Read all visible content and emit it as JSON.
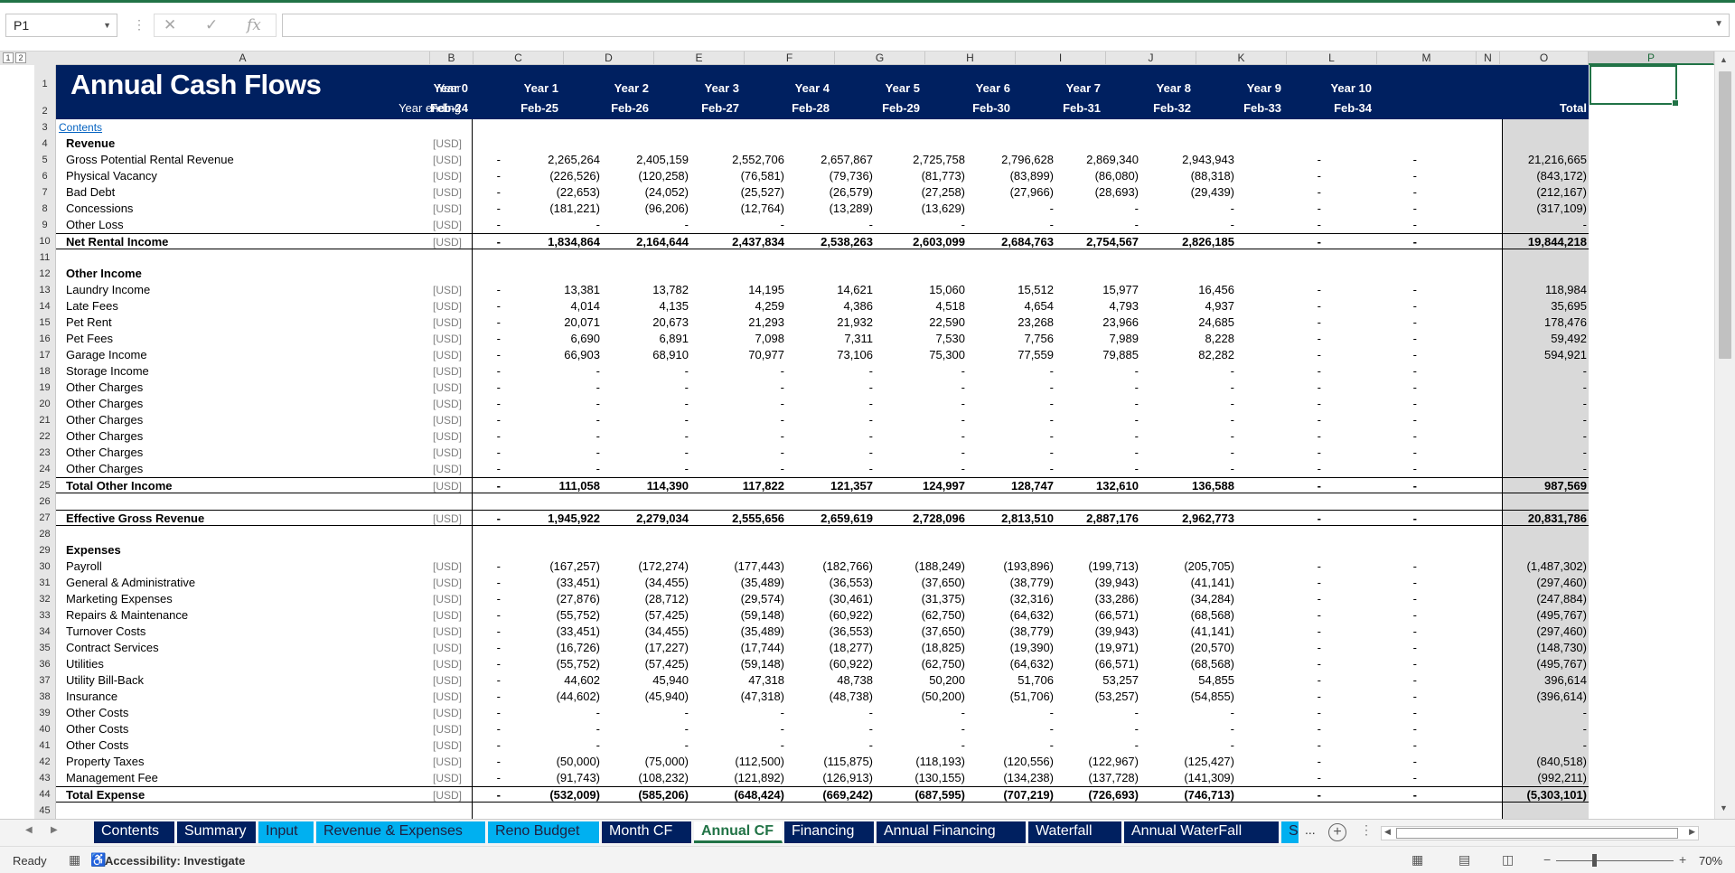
{
  "namebox": "P1",
  "columns": [
    "A",
    "B",
    "C",
    "D",
    "E",
    "F",
    "G",
    "H",
    "I",
    "J",
    "K",
    "L",
    "M",
    "N",
    "O",
    "P"
  ],
  "rows_numbers": [
    "1",
    "2",
    "3",
    "4",
    "5",
    "6",
    "7",
    "8",
    "9",
    "10",
    "11",
    "12",
    "13",
    "14",
    "15",
    "16",
    "17",
    "18",
    "19",
    "20",
    "21",
    "22",
    "23",
    "24",
    "25",
    "26",
    "27",
    "28",
    "29",
    "30",
    "31",
    "32",
    "33",
    "34",
    "35",
    "36",
    "37",
    "38",
    "39",
    "40",
    "41",
    "42",
    "43",
    "44",
    "45"
  ],
  "banner": {
    "title": "Annual Cash Flows",
    "year_label": "Year",
    "year_ending_label": "Year ending",
    "years": [
      "Year 0",
      "Year 1",
      "Year 2",
      "Year 3",
      "Year 4",
      "Year 5",
      "Year 6",
      "Year 7",
      "Year 8",
      "Year 9",
      "Year 10"
    ],
    "endings": [
      "Feb-24",
      "Feb-25",
      "Feb-26",
      "Feb-27",
      "Feb-28",
      "Feb-29",
      "Feb-30",
      "Feb-31",
      "Feb-32",
      "Feb-33",
      "Feb-34"
    ],
    "total_label": "Total"
  },
  "contents_link": "Contents",
  "rows": [
    {
      "label": "Revenue",
      "unit": "[USD]",
      "bold": true,
      "vals": []
    },
    {
      "label": "Gross Potential Rental Revenue",
      "unit": "[USD]",
      "vals": [
        "-",
        "2,265,264",
        "2,405,159",
        "2,552,706",
        "2,657,867",
        "2,725,758",
        "2,796,628",
        "2,869,340",
        "2,943,943",
        "-",
        "-",
        "21,216,665"
      ]
    },
    {
      "label": "Physical Vacancy",
      "unit": "[USD]",
      "vals": [
        "-",
        "(226,526)",
        "(120,258)",
        "(76,581)",
        "(79,736)",
        "(81,773)",
        "(83,899)",
        "(86,080)",
        "(88,318)",
        "-",
        "-",
        "(843,172)"
      ]
    },
    {
      "label": "Bad Debt",
      "unit": "[USD]",
      "vals": [
        "-",
        "(22,653)",
        "(24,052)",
        "(25,527)",
        "(26,579)",
        "(27,258)",
        "(27,966)",
        "(28,693)",
        "(29,439)",
        "-",
        "-",
        "(212,167)"
      ]
    },
    {
      "label": "Concessions",
      "unit": "[USD]",
      "vals": [
        "-",
        "(181,221)",
        "(96,206)",
        "(12,764)",
        "(13,289)",
        "(13,629)",
        "-",
        "-",
        "-",
        "-",
        "-",
        "(317,109)"
      ]
    },
    {
      "label": "Other Loss",
      "unit": "[USD]",
      "vals": [
        "-",
        "-",
        "-",
        "-",
        "-",
        "-",
        "-",
        "-",
        "-",
        "-",
        "-",
        "-"
      ]
    },
    {
      "label": "Net Rental Income",
      "unit": "[USD]",
      "bold": true,
      "total": true,
      "vals": [
        "-",
        "1,834,864",
        "2,164,644",
        "2,437,834",
        "2,538,263",
        "2,603,099",
        "2,684,763",
        "2,754,567",
        "2,826,185",
        "-",
        "-",
        "19,844,218"
      ]
    },
    {
      "label": "",
      "unit": "",
      "vals": []
    },
    {
      "label": "Other Income",
      "unit": "",
      "bold": true,
      "vals": []
    },
    {
      "label": "Laundry Income",
      "unit": "[USD]",
      "vals": [
        "-",
        "13,381",
        "13,782",
        "14,195",
        "14,621",
        "15,060",
        "15,512",
        "15,977",
        "16,456",
        "-",
        "-",
        "118,984"
      ]
    },
    {
      "label": "Late Fees",
      "unit": "[USD]",
      "vals": [
        "-",
        "4,014",
        "4,135",
        "4,259",
        "4,386",
        "4,518",
        "4,654",
        "4,793",
        "4,937",
        "-",
        "-",
        "35,695"
      ]
    },
    {
      "label": "Pet Rent",
      "unit": "[USD]",
      "vals": [
        "-",
        "20,071",
        "20,673",
        "21,293",
        "21,932",
        "22,590",
        "23,268",
        "23,966",
        "24,685",
        "-",
        "-",
        "178,476"
      ]
    },
    {
      "label": "Pet Fees",
      "unit": "[USD]",
      "vals": [
        "-",
        "6,690",
        "6,891",
        "7,098",
        "7,311",
        "7,530",
        "7,756",
        "7,989",
        "8,228",
        "-",
        "-",
        "59,492"
      ]
    },
    {
      "label": "Garage Income",
      "unit": "[USD]",
      "vals": [
        "-",
        "66,903",
        "68,910",
        "70,977",
        "73,106",
        "75,300",
        "77,559",
        "79,885",
        "82,282",
        "-",
        "-",
        "594,921"
      ]
    },
    {
      "label": "Storage Income",
      "unit": "[USD]",
      "vals": [
        "-",
        "-",
        "-",
        "-",
        "-",
        "-",
        "-",
        "-",
        "-",
        "-",
        "-",
        "-"
      ]
    },
    {
      "label": "Other Charges",
      "unit": "[USD]",
      "vals": [
        "-",
        "-",
        "-",
        "-",
        "-",
        "-",
        "-",
        "-",
        "-",
        "-",
        "-",
        "-"
      ]
    },
    {
      "label": "Other Charges",
      "unit": "[USD]",
      "vals": [
        "-",
        "-",
        "-",
        "-",
        "-",
        "-",
        "-",
        "-",
        "-",
        "-",
        "-",
        "-"
      ]
    },
    {
      "label": "Other Charges",
      "unit": "[USD]",
      "vals": [
        "-",
        "-",
        "-",
        "-",
        "-",
        "-",
        "-",
        "-",
        "-",
        "-",
        "-",
        "-"
      ]
    },
    {
      "label": "Other Charges",
      "unit": "[USD]",
      "vals": [
        "-",
        "-",
        "-",
        "-",
        "-",
        "-",
        "-",
        "-",
        "-",
        "-",
        "-",
        "-"
      ]
    },
    {
      "label": "Other Charges",
      "unit": "[USD]",
      "vals": [
        "-",
        "-",
        "-",
        "-",
        "-",
        "-",
        "-",
        "-",
        "-",
        "-",
        "-",
        "-"
      ]
    },
    {
      "label": "Other Charges",
      "unit": "[USD]",
      "vals": [
        "-",
        "-",
        "-",
        "-",
        "-",
        "-",
        "-",
        "-",
        "-",
        "-",
        "-",
        "-"
      ]
    },
    {
      "label": "Total Other Income",
      "unit": "[USD]",
      "bold": true,
      "total": true,
      "vals": [
        "-",
        "111,058",
        "114,390",
        "117,822",
        "121,357",
        "124,997",
        "128,747",
        "132,610",
        "136,588",
        "-",
        "-",
        "987,569"
      ]
    },
    {
      "label": "",
      "unit": "",
      "vals": []
    },
    {
      "label": "Effective Gross Revenue",
      "unit": "[USD]",
      "bold": true,
      "total": true,
      "vals": [
        "-",
        "1,945,922",
        "2,279,034",
        "2,555,656",
        "2,659,619",
        "2,728,096",
        "2,813,510",
        "2,887,176",
        "2,962,773",
        "-",
        "-",
        "20,831,786"
      ]
    },
    {
      "label": "",
      "unit": "",
      "vals": []
    },
    {
      "label": "Expenses",
      "unit": "",
      "bold": true,
      "vals": []
    },
    {
      "label": "Payroll",
      "unit": "[USD]",
      "vals": [
        "-",
        "(167,257)",
        "(172,274)",
        "(177,443)",
        "(182,766)",
        "(188,249)",
        "(193,896)",
        "(199,713)",
        "(205,705)",
        "-",
        "-",
        "(1,487,302)"
      ]
    },
    {
      "label": "General & Administrative",
      "unit": "[USD]",
      "vals": [
        "-",
        "(33,451)",
        "(34,455)",
        "(35,489)",
        "(36,553)",
        "(37,650)",
        "(38,779)",
        "(39,943)",
        "(41,141)",
        "-",
        "-",
        "(297,460)"
      ]
    },
    {
      "label": "Marketing Expenses",
      "unit": "[USD]",
      "vals": [
        "-",
        "(27,876)",
        "(28,712)",
        "(29,574)",
        "(30,461)",
        "(31,375)",
        "(32,316)",
        "(33,286)",
        "(34,284)",
        "-",
        "-",
        "(247,884)"
      ]
    },
    {
      "label": "Repairs & Maintenance",
      "unit": "[USD]",
      "vals": [
        "-",
        "(55,752)",
        "(57,425)",
        "(59,148)",
        "(60,922)",
        "(62,750)",
        "(64,632)",
        "(66,571)",
        "(68,568)",
        "-",
        "-",
        "(495,767)"
      ]
    },
    {
      "label": "Turnover Costs",
      "unit": "[USD]",
      "vals": [
        "-",
        "(33,451)",
        "(34,455)",
        "(35,489)",
        "(36,553)",
        "(37,650)",
        "(38,779)",
        "(39,943)",
        "(41,141)",
        "-",
        "-",
        "(297,460)"
      ]
    },
    {
      "label": "Contract Services",
      "unit": "[USD]",
      "vals": [
        "-",
        "(16,726)",
        "(17,227)",
        "(17,744)",
        "(18,277)",
        "(18,825)",
        "(19,390)",
        "(19,971)",
        "(20,570)",
        "-",
        "-",
        "(148,730)"
      ]
    },
    {
      "label": "Utilities",
      "unit": "[USD]",
      "vals": [
        "-",
        "(55,752)",
        "(57,425)",
        "(59,148)",
        "(60,922)",
        "(62,750)",
        "(64,632)",
        "(66,571)",
        "(68,568)",
        "-",
        "-",
        "(495,767)"
      ]
    },
    {
      "label": "Utility Bill-Back",
      "unit": "[USD]",
      "vals": [
        "-",
        "44,602",
        "45,940",
        "47,318",
        "48,738",
        "50,200",
        "51,706",
        "53,257",
        "54,855",
        "-",
        "-",
        "396,614"
      ]
    },
    {
      "label": "Insurance",
      "unit": "[USD]",
      "vals": [
        "-",
        "(44,602)",
        "(45,940)",
        "(47,318)",
        "(48,738)",
        "(50,200)",
        "(51,706)",
        "(53,257)",
        "(54,855)",
        "-",
        "-",
        "(396,614)"
      ]
    },
    {
      "label": "Other Costs",
      "unit": "[USD]",
      "vals": [
        "-",
        "-",
        "-",
        "-",
        "-",
        "-",
        "-",
        "-",
        "-",
        "-",
        "-",
        "-"
      ]
    },
    {
      "label": "Other Costs",
      "unit": "[USD]",
      "vals": [
        "-",
        "-",
        "-",
        "-",
        "-",
        "-",
        "-",
        "-",
        "-",
        "-",
        "-",
        "-"
      ]
    },
    {
      "label": "Other Costs",
      "unit": "[USD]",
      "vals": [
        "-",
        "-",
        "-",
        "-",
        "-",
        "-",
        "-",
        "-",
        "-",
        "-",
        "-",
        "-"
      ]
    },
    {
      "label": "Property Taxes",
      "unit": "[USD]",
      "vals": [
        "-",
        "(50,000)",
        "(75,000)",
        "(112,500)",
        "(115,875)",
        "(118,193)",
        "(120,556)",
        "(122,967)",
        "(125,427)",
        "-",
        "-",
        "(840,518)"
      ]
    },
    {
      "label": "Management Fee",
      "unit": "[USD]",
      "vals": [
        "-",
        "(91,743)",
        "(108,232)",
        "(121,892)",
        "(126,913)",
        "(130,155)",
        "(134,238)",
        "(137,728)",
        "(141,309)",
        "-",
        "-",
        "(992,211)"
      ]
    },
    {
      "label": "Total Expense",
      "unit": "[USD]",
      "bold": true,
      "total": true,
      "vals": [
        "-",
        "(532,009)",
        "(585,206)",
        "(648,424)",
        "(669,242)",
        "(687,595)",
        "(707,219)",
        "(726,693)",
        "(746,713)",
        "-",
        "-",
        "(5,303,101)"
      ]
    }
  ],
  "tabs": [
    {
      "label": "Contents",
      "style": "navy"
    },
    {
      "label": "Summary",
      "style": "navy"
    },
    {
      "label": "Input",
      "style": "cyan"
    },
    {
      "label": "Revenue & Expenses",
      "style": "cyan"
    },
    {
      "label": "Reno Budget",
      "style": "cyan"
    },
    {
      "label": "Month CF",
      "style": "navy"
    },
    {
      "label": "Annual CF",
      "style": "active"
    },
    {
      "label": "Financing",
      "style": "navy"
    },
    {
      "label": "Annual Financing",
      "style": "navy"
    },
    {
      "label": "Waterfall",
      "style": "navy"
    },
    {
      "label": "Annual WaterFall",
      "style": "navy"
    },
    {
      "label": "S",
      "style": "cyan"
    }
  ],
  "tab_more": "...",
  "status": {
    "ready": "Ready",
    "accessibility": "Accessibility: Investigate",
    "zoom": "70%"
  }
}
